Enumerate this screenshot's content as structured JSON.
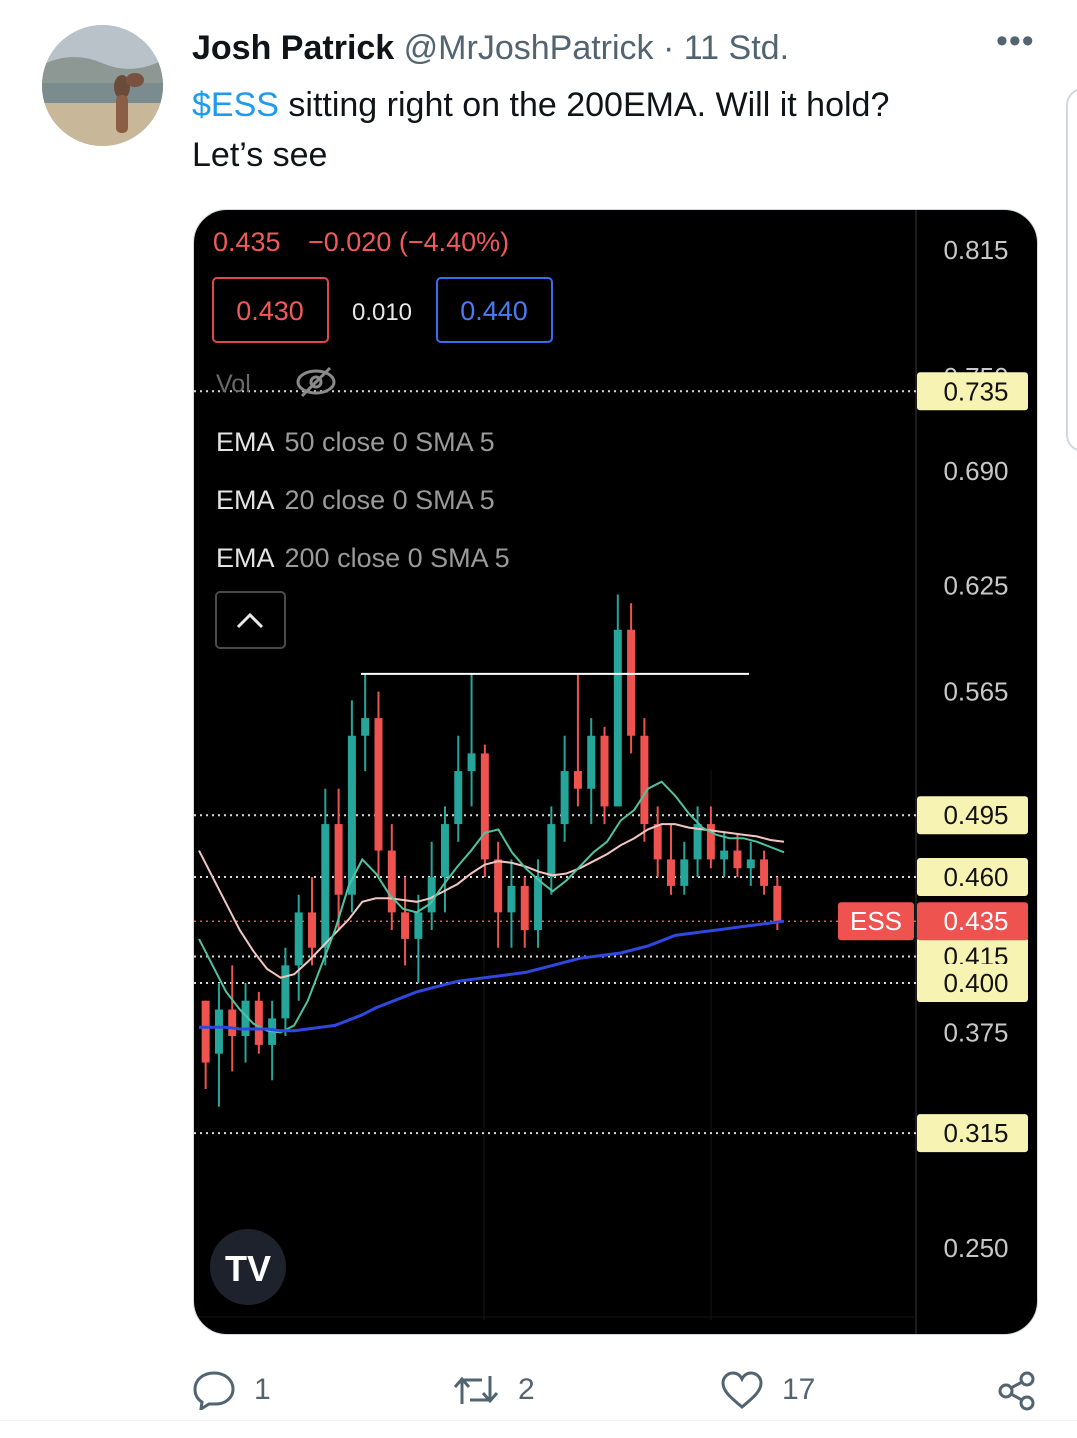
{
  "tweet": {
    "author_name": "Josh Patrick",
    "handle": "@MrJoshPatrick",
    "separator": "·",
    "time": "11 Std.",
    "more_icon": "more-horizontal-icon",
    "cashtag": "$ESS",
    "text_rest": " sitting right on the 200EMA. Will it hold?",
    "text_line2": "Let’s see"
  },
  "chart": {
    "header_price": "0.435",
    "header_change": "−0.020 (−4.40%)",
    "bid": "0.430",
    "spread": "0.010",
    "ask": "0.440",
    "vol_label": "Vol",
    "vol_icon": "eye-crossed-icon",
    "indicators": [
      {
        "name": "EMA",
        "params": "50 close 0 SMA 5"
      },
      {
        "name": "EMA",
        "params": "20 close 0 SMA 5"
      },
      {
        "name": "EMA",
        "params": "200 close 0 SMA 5"
      }
    ],
    "collapse_icon": "chevron-up-icon",
    "ticker_tag": "ESS",
    "logo_text": "TV",
    "axis_ticks": [
      "0.815",
      "0.750",
      "0.690",
      "0.625",
      "0.565",
      "0.375",
      "0.250"
    ],
    "price_lines": [
      {
        "label": "0.735",
        "value": 0.735
      },
      {
        "label": "0.495",
        "value": 0.495
      },
      {
        "label": "0.460",
        "value": 0.46
      },
      {
        "label": "0.415",
        "value": 0.415
      },
      {
        "label": "0.400",
        "value": 0.4
      },
      {
        "label": "0.315",
        "value": 0.315
      }
    ],
    "current_price": {
      "label": "0.435",
      "value": 0.435
    },
    "resistance_level": 0.575,
    "colors": {
      "background": "#000000",
      "up_candle": "#26a69a",
      "down_candle": "#ef5350",
      "ema200": "#2f49e0",
      "ema20": "#4fc3a1",
      "ema50": "#f2c6c0",
      "price_tag": "#f7f3b2",
      "current_tag": "#ef5350",
      "header_red": "#f05a5a",
      "ask_blue": "#4a7cf0"
    }
  },
  "chart_data": {
    "type": "candlestick",
    "ylim": [
      0.24,
      0.84
    ],
    "ema200": [
      0.375,
      0.375,
      0.375,
      0.374,
      0.374,
      0.374,
      0.373,
      0.373,
      0.374,
      0.375,
      0.376,
      0.379,
      0.382,
      0.386,
      0.389,
      0.392,
      0.395,
      0.397,
      0.399,
      0.401,
      0.402,
      0.403,
      0.404,
      0.405,
      0.406,
      0.408,
      0.41,
      0.412,
      0.414,
      0.415,
      0.416,
      0.417,
      0.419,
      0.421,
      0.424,
      0.427,
      0.428,
      0.429,
      0.43,
      0.431,
      0.432,
      0.433,
      0.434,
      0.435
    ],
    "ema20": [
      0.425,
      0.41,
      0.395,
      0.385,
      0.377,
      0.373,
      0.372,
      0.376,
      0.39,
      0.41,
      0.43,
      0.455,
      0.47,
      0.462,
      0.45,
      0.442,
      0.44,
      0.445,
      0.456,
      0.466,
      0.475,
      0.485,
      0.487,
      0.474,
      0.465,
      0.458,
      0.452,
      0.458,
      0.466,
      0.474,
      0.48,
      0.492,
      0.498,
      0.51,
      0.514,
      0.506,
      0.496,
      0.488,
      0.484,
      0.482,
      0.482,
      0.48,
      0.477,
      0.474
    ],
    "ema50": [
      0.475,
      0.46,
      0.445,
      0.43,
      0.418,
      0.408,
      0.403,
      0.405,
      0.412,
      0.42,
      0.428,
      0.436,
      0.446,
      0.448,
      0.448,
      0.447,
      0.446,
      0.448,
      0.452,
      0.456,
      0.462,
      0.467,
      0.469,
      0.468,
      0.466,
      0.463,
      0.461,
      0.462,
      0.465,
      0.469,
      0.473,
      0.478,
      0.482,
      0.487,
      0.49,
      0.49,
      0.488,
      0.487,
      0.486,
      0.485,
      0.484,
      0.483,
      0.481,
      0.48
    ],
    "candles": [
      {
        "o": 0.39,
        "h": 0.39,
        "l": 0.34,
        "c": 0.355
      },
      {
        "o": 0.36,
        "h": 0.4,
        "l": 0.33,
        "c": 0.385
      },
      {
        "o": 0.385,
        "h": 0.41,
        "l": 0.35,
        "c": 0.37
      },
      {
        "o": 0.37,
        "h": 0.4,
        "l": 0.355,
        "c": 0.39
      },
      {
        "o": 0.39,
        "h": 0.395,
        "l": 0.36,
        "c": 0.365
      },
      {
        "o": 0.365,
        "h": 0.39,
        "l": 0.345,
        "c": 0.38
      },
      {
        "o": 0.38,
        "h": 0.42,
        "l": 0.37,
        "c": 0.41
      },
      {
        "o": 0.41,
        "h": 0.45,
        "l": 0.39,
        "c": 0.44
      },
      {
        "o": 0.44,
        "h": 0.46,
        "l": 0.41,
        "c": 0.42
      },
      {
        "o": 0.42,
        "h": 0.51,
        "l": 0.41,
        "c": 0.49
      },
      {
        "o": 0.49,
        "h": 0.51,
        "l": 0.43,
        "c": 0.45
      },
      {
        "o": 0.45,
        "h": 0.56,
        "l": 0.44,
        "c": 0.54
      },
      {
        "o": 0.54,
        "h": 0.575,
        "l": 0.52,
        "c": 0.55
      },
      {
        "o": 0.55,
        "h": 0.565,
        "l": 0.46,
        "c": 0.475
      },
      {
        "o": 0.475,
        "h": 0.49,
        "l": 0.43,
        "c": 0.44
      },
      {
        "o": 0.44,
        "h": 0.46,
        "l": 0.41,
        "c": 0.425
      },
      {
        "o": 0.425,
        "h": 0.45,
        "l": 0.4,
        "c": 0.44
      },
      {
        "o": 0.44,
        "h": 0.48,
        "l": 0.43,
        "c": 0.46
      },
      {
        "o": 0.46,
        "h": 0.5,
        "l": 0.44,
        "c": 0.49
      },
      {
        "o": 0.49,
        "h": 0.54,
        "l": 0.48,
        "c": 0.52
      },
      {
        "o": 0.52,
        "h": 0.575,
        "l": 0.5,
        "c": 0.53
      },
      {
        "o": 0.53,
        "h": 0.535,
        "l": 0.46,
        "c": 0.47
      },
      {
        "o": 0.47,
        "h": 0.48,
        "l": 0.42,
        "c": 0.44
      },
      {
        "o": 0.44,
        "h": 0.47,
        "l": 0.42,
        "c": 0.455
      },
      {
        "o": 0.455,
        "h": 0.46,
        "l": 0.42,
        "c": 0.43
      },
      {
        "o": 0.43,
        "h": 0.47,
        "l": 0.42,
        "c": 0.46
      },
      {
        "o": 0.46,
        "h": 0.5,
        "l": 0.45,
        "c": 0.49
      },
      {
        "o": 0.49,
        "h": 0.54,
        "l": 0.48,
        "c": 0.52
      },
      {
        "o": 0.52,
        "h": 0.575,
        "l": 0.5,
        "c": 0.51
      },
      {
        "o": 0.51,
        "h": 0.55,
        "l": 0.49,
        "c": 0.54
      },
      {
        "o": 0.54,
        "h": 0.545,
        "l": 0.49,
        "c": 0.5
      },
      {
        "o": 0.5,
        "h": 0.62,
        "l": 0.5,
        "c": 0.6
      },
      {
        "o": 0.6,
        "h": 0.615,
        "l": 0.53,
        "c": 0.54
      },
      {
        "o": 0.54,
        "h": 0.55,
        "l": 0.48,
        "c": 0.49
      },
      {
        "o": 0.49,
        "h": 0.5,
        "l": 0.46,
        "c": 0.47
      },
      {
        "o": 0.47,
        "h": 0.49,
        "l": 0.45,
        "c": 0.455
      },
      {
        "o": 0.455,
        "h": 0.48,
        "l": 0.45,
        "c": 0.47
      },
      {
        "o": 0.47,
        "h": 0.5,
        "l": 0.46,
        "c": 0.49
      },
      {
        "o": 0.49,
        "h": 0.5,
        "l": 0.465,
        "c": 0.47
      },
      {
        "o": 0.47,
        "h": 0.485,
        "l": 0.46,
        "c": 0.475
      },
      {
        "o": 0.475,
        "h": 0.485,
        "l": 0.46,
        "c": 0.465
      },
      {
        "o": 0.465,
        "h": 0.48,
        "l": 0.455,
        "c": 0.47
      },
      {
        "o": 0.47,
        "h": 0.475,
        "l": 0.45,
        "c": 0.455
      },
      {
        "o": 0.455,
        "h": 0.46,
        "l": 0.43,
        "c": 0.435
      }
    ]
  },
  "actions": {
    "reply": {
      "icon": "reply-icon",
      "count": "1"
    },
    "retweet": {
      "icon": "retweet-icon",
      "count": "2"
    },
    "like": {
      "icon": "heart-icon",
      "count": "17"
    },
    "share": {
      "icon": "share-icon"
    }
  }
}
